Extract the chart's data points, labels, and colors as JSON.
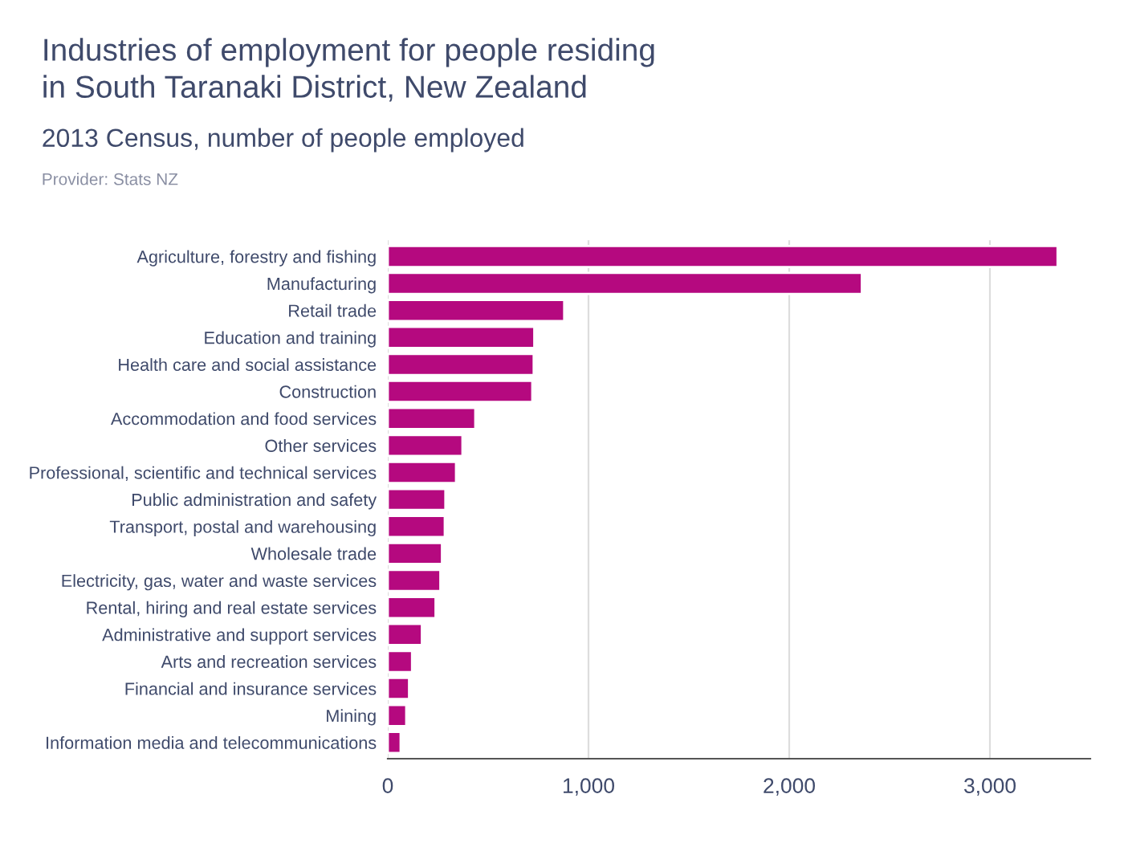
{
  "chart_data": {
    "type": "bar",
    "orientation": "horizontal",
    "title": "Industries of employment for people residing\nin South Taranaki District, New Zealand",
    "subtitle": "2013 Census, number of people employed",
    "annotations": [
      "Provider: Stats NZ"
    ],
    "categories": [
      "Agriculture, forestry and fishing",
      "Manufacturing",
      "Retail trade",
      "Education and training",
      "Health care and social assistance",
      "Construction",
      "Accommodation and food services",
      "Other services",
      "Professional, scientific and technical services",
      "Public administration and safety",
      "Transport, postal and warehousing",
      "Wholesale trade",
      "Electricity, gas, water and waste services",
      "Rental, hiring and real estate services",
      "Administrative and support services",
      "Arts and recreation services",
      "Financial and insurance services",
      "Mining",
      "Information media and telecommunications"
    ],
    "values": [
      3337,
      2362,
      879,
      730,
      727,
      720,
      436,
      372,
      340,
      287,
      284,
      270,
      262,
      238,
      170,
      121,
      106,
      92,
      64
    ],
    "color": "#b5097f",
    "xlim": [
      0,
      3500
    ],
    "xticks": [
      {
        "value": 0,
        "label": "0"
      },
      {
        "value": 1000,
        "label": "1,000"
      },
      {
        "value": 2000,
        "label": "2,000"
      },
      {
        "value": 3000,
        "label": "3,000"
      }
    ],
    "grid": "x"
  }
}
